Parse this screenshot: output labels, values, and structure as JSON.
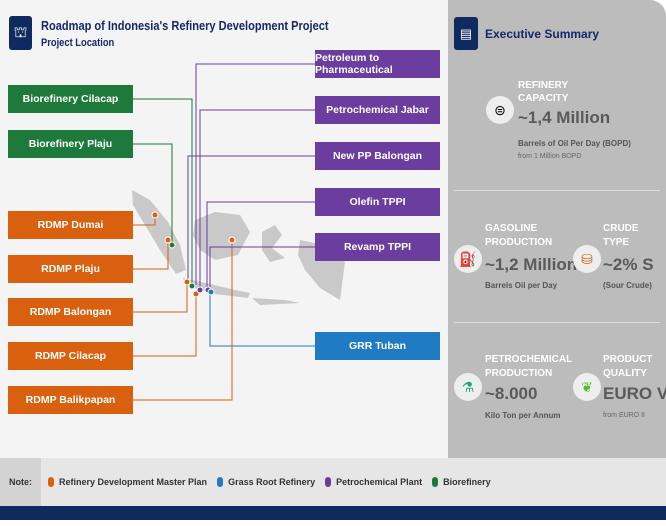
{
  "header": {
    "title": "Roadmap of Indonesia's Refinery Development Project",
    "subtitle": "Project Location"
  },
  "left_boxes": [
    "Biorefinery Cilacap",
    "Biorefinery Plaju",
    "RDMP Dumai",
    "RDMP Plaju",
    "RDMP Balongan",
    "RDMP Cilacap",
    "RDMP Balikpapan"
  ],
  "right_boxes": [
    "Petroleum to Pharmaceutical",
    "Petrochemical Jabar",
    "New PP Balongan",
    "Olefin TPPI",
    "Revamp TPPI",
    "GRR Tuban"
  ],
  "summary": {
    "title": "Executive Summary",
    "refinery": {
      "label1": "REFINERY",
      "label2": "CAPACITY",
      "value": "~1,4 Million",
      "unit": "Barrels of Oil Per Day (BOPD)",
      "note": "from 1 Million BOPD"
    },
    "gasoline": {
      "label1": "GASOLINE",
      "label2": "PRODUCTION",
      "value": "~1,2 Million",
      "unit": "Barrels Oil per Day"
    },
    "crude": {
      "label1": "CRUDE",
      "label2": "TYPE",
      "value": "~2% S",
      "unit": "(Sour Crude)"
    },
    "petrochem": {
      "label1": "PETROCHEMICAL",
      "label2": "PRODUCTION",
      "value": "~8.000",
      "unit": "Kilo Ton per Annum"
    },
    "quality": {
      "label1": "PRODUCT",
      "label2": "QUALITY",
      "value": "EURO V",
      "note": "from EURO II"
    }
  },
  "legend": {
    "note": "Note:",
    "items": [
      "Refinery Development Master Plan",
      "Grass Root Refinery",
      "Petrochemical Plant",
      "Biorefinery"
    ]
  },
  "colors": {
    "orange": "#d9600f",
    "blue": "#1f7bc3",
    "purple": "#6a3d9f",
    "green": "#1d7a3a",
    "navy": "#0f2a5e"
  }
}
